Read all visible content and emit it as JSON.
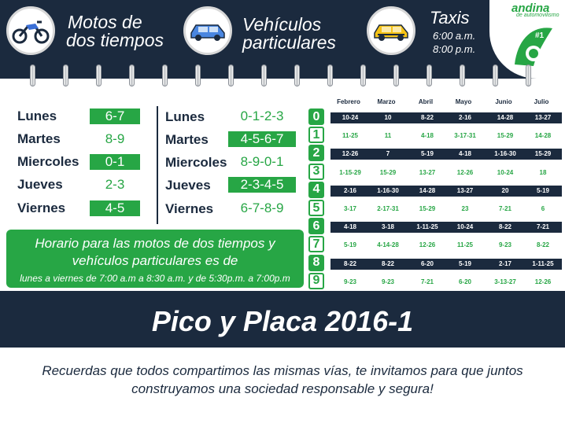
{
  "header": {
    "motos_title_line1": "Motos de",
    "motos_title_line2": "dos tiempos",
    "vehiculos_title_line1": "Vehículos",
    "vehiculos_title_line2": "particulares",
    "taxis_title": "Taxis",
    "taxis_time_1": "6:00 a.m.",
    "taxis_time_2": "8:00 p.m."
  },
  "logo": {
    "brand": "andina",
    "sub": "de automovilismo",
    "badge": "#1"
  },
  "colors": {
    "navy": "#1b2a3e",
    "green": "#27a645",
    "white": "#ffffff"
  },
  "motos": [
    {
      "day": "Lunes",
      "plates": "6-7",
      "highlight": true
    },
    {
      "day": "Martes",
      "plates": "8-9",
      "highlight": false
    },
    {
      "day": "Miercoles",
      "plates": "0-1",
      "highlight": true
    },
    {
      "day": "Jueves",
      "plates": "2-3",
      "highlight": false
    },
    {
      "day": "Viernes",
      "plates": "4-5",
      "highlight": true
    }
  ],
  "vehiculos": [
    {
      "day": "Lunes",
      "plates": "0-1-2-3",
      "highlight": false
    },
    {
      "day": "Martes",
      "plates": "4-5-6-7",
      "highlight": true
    },
    {
      "day": "Miercoles",
      "plates": "8-9-0-1",
      "highlight": false
    },
    {
      "day": "Jueves",
      "plates": "2-3-4-5",
      "highlight": true
    },
    {
      "day": "Viernes",
      "plates": "6-7-8-9",
      "highlight": false
    }
  ],
  "schedule": {
    "line1": "Horario para las motos de dos tiempos y",
    "line2": "vehículos particulares es de",
    "line3": "lunes a viernes de 7:00 a.m a 8:30 a.m. y de 5:30p.m. a 7:00p.m"
  },
  "taxis_table": {
    "months": [
      "Febrero",
      "Marzo",
      "Abril",
      "Mayo",
      "Junio",
      "Julio"
    ],
    "rows": [
      {
        "digit": "0",
        "values": [
          "10-24",
          "10",
          "8-22",
          "2-16",
          "14-28",
          "13-27"
        ]
      },
      {
        "digit": "1",
        "values": [
          "11-25",
          "11",
          "4-18",
          "3-17-31",
          "15-29",
          "14-28"
        ]
      },
      {
        "digit": "2",
        "values": [
          "12-26",
          "7",
          "5-19",
          "4-18",
          "1-16-30",
          "15-29"
        ]
      },
      {
        "digit": "3",
        "values": [
          "1-15-29",
          "15-29",
          "13-27",
          "12-26",
          "10-24",
          "18"
        ]
      },
      {
        "digit": "4",
        "values": [
          "2-16",
          "1-16-30",
          "14-28",
          "13-27",
          "20",
          "5-19"
        ]
      },
      {
        "digit": "5",
        "values": [
          "3-17",
          "2-17-31",
          "15-29",
          "23",
          "7-21",
          "6"
        ]
      },
      {
        "digit": "6",
        "values": [
          "4-18",
          "3-18",
          "1-11-25",
          "10-24",
          "8-22",
          "7-21"
        ]
      },
      {
        "digit": "7",
        "values": [
          "5-19",
          "4-14-28",
          "12-26",
          "11-25",
          "9-23",
          "8-22"
        ]
      },
      {
        "digit": "8",
        "values": [
          "8-22",
          "8-22",
          "6-20",
          "5-19",
          "2-17",
          "1-11-25"
        ]
      },
      {
        "digit": "9",
        "values": [
          "9-23",
          "9-23",
          "7-21",
          "6-20",
          "3-13-27",
          "12-26"
        ]
      }
    ]
  },
  "banner": {
    "title": "Pico y Placa 2016-1"
  },
  "footer": {
    "line1": "Recuerdas que todos compartimos las mismas vías, te invitamos para que juntos",
    "line2": "construyamos una sociedad responsable y segura!"
  }
}
